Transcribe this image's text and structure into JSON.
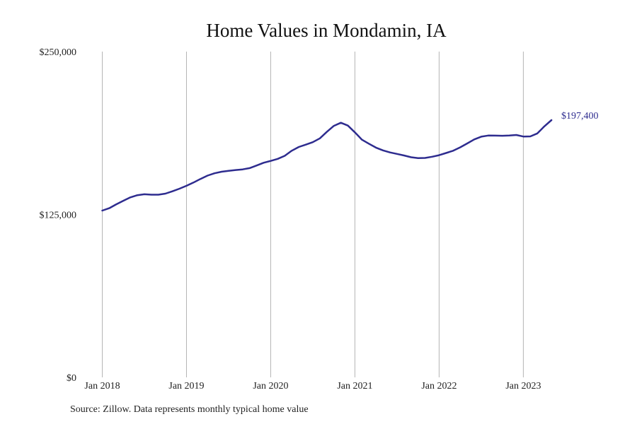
{
  "chart_data": {
    "type": "line",
    "title": "Home Values in Mondamin, IA",
    "xlabel": "",
    "ylabel": "",
    "ylim": [
      0,
      250000
    ],
    "y_ticks": [
      {
        "value": 0,
        "label": "$0"
      },
      {
        "value": 125000,
        "label": "$125,000"
      },
      {
        "value": 250000,
        "label": "$250,000"
      }
    ],
    "x_ticks": [
      "Jan 2018",
      "Jan 2019",
      "Jan 2020",
      "Jan 2021",
      "Jan 2022",
      "Jan 2023"
    ],
    "grid": "vertical",
    "line_color": "#2e2c8f",
    "end_label": "$197,400",
    "series": [
      {
        "x": [
          "2018-01",
          "2018-02",
          "2018-03",
          "2018-04",
          "2018-05",
          "2018-06",
          "2018-07",
          "2018-08",
          "2018-09",
          "2018-10",
          "2018-11",
          "2018-12",
          "2019-01",
          "2019-02",
          "2019-03",
          "2019-04",
          "2019-05",
          "2019-06",
          "2019-07",
          "2019-08",
          "2019-09",
          "2019-10",
          "2019-11",
          "2019-12",
          "2020-01",
          "2020-02",
          "2020-03",
          "2020-04",
          "2020-05",
          "2020-06",
          "2020-07",
          "2020-08",
          "2020-09",
          "2020-10",
          "2020-11",
          "2020-12",
          "2021-01",
          "2021-02",
          "2021-03",
          "2021-04",
          "2021-05",
          "2021-06",
          "2021-07",
          "2021-08",
          "2021-09",
          "2021-10",
          "2021-11",
          "2021-12",
          "2022-01",
          "2022-02",
          "2022-03",
          "2022-04",
          "2022-05",
          "2022-06",
          "2022-07",
          "2022-08",
          "2022-09",
          "2022-10",
          "2022-11",
          "2022-12",
          "2023-01",
          "2023-02",
          "2023-03",
          "2023-04",
          "2023-05"
        ],
        "values": [
          128000,
          129800,
          132800,
          135500,
          138100,
          139800,
          140500,
          140200,
          140200,
          141000,
          142800,
          144800,
          147000,
          149500,
          152300,
          154800,
          156600,
          157800,
          158500,
          159100,
          159600,
          160600,
          162600,
          164700,
          166100,
          167700,
          170000,
          173900,
          176800,
          178600,
          180500,
          183400,
          188400,
          193000,
          195400,
          193200,
          188000,
          182400,
          179300,
          176300,
          174200,
          172600,
          171500,
          170300,
          168900,
          168300,
          168400,
          169300,
          170500,
          172200,
          173900,
          176500,
          179500,
          182600,
          184700,
          185600,
          185500,
          185400,
          185600,
          186000,
          184800,
          184900,
          187200,
          192600,
          197400
        ]
      }
    ]
  },
  "footer": {
    "source": "Source: Zillow. Data represents monthly typical home value"
  }
}
